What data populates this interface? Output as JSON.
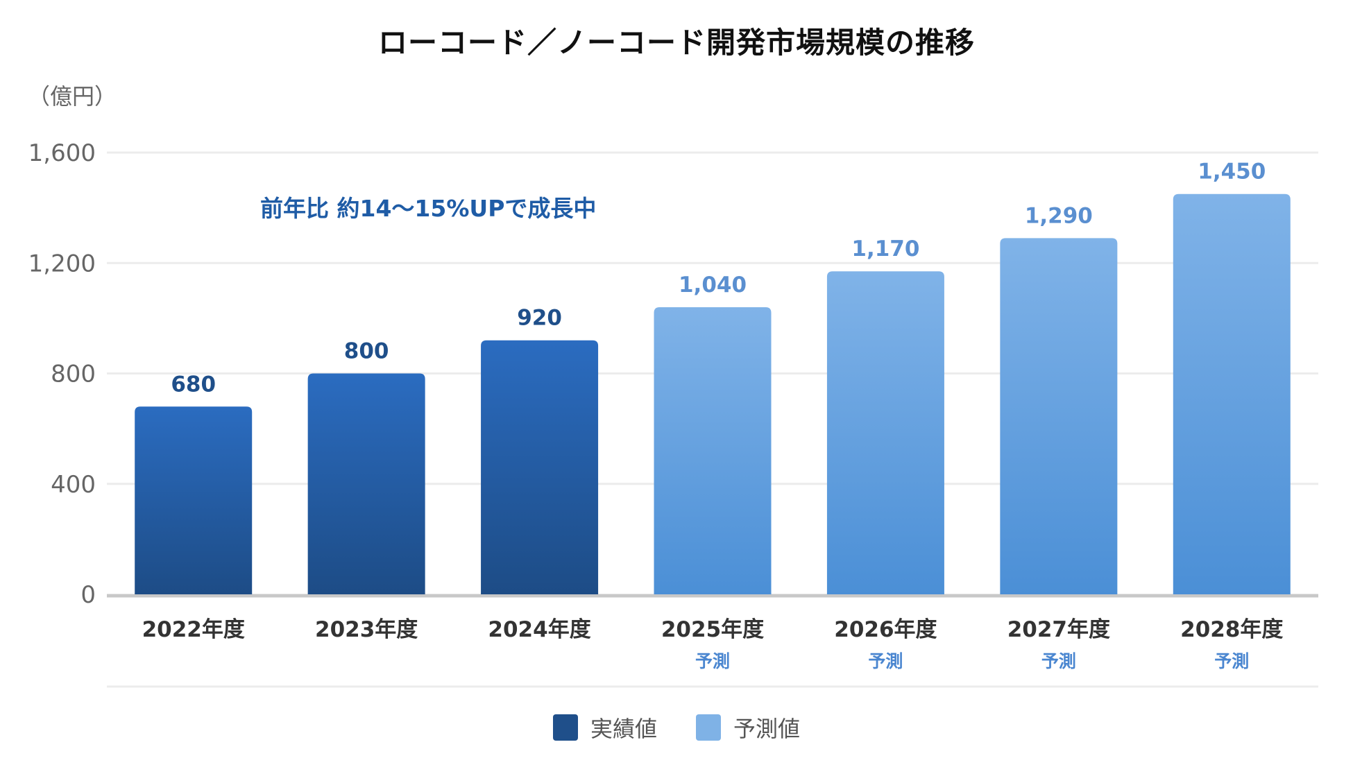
{
  "chart_data": {
    "type": "bar",
    "title": "ローコード／ノーコード開発市場規模の推移",
    "ylabel": "（億円）",
    "ylim": [
      0,
      1600
    ],
    "yticks": [
      0,
      400,
      800,
      1200,
      1600
    ],
    "ytick_labels": [
      "0",
      "400",
      "800",
      "1,200",
      "1,600"
    ],
    "grid": true,
    "categories": [
      "2022年度",
      "2023年度",
      "2024年度",
      "2025年度",
      "2026年度",
      "2027年度",
      "2028年度"
    ],
    "sublabels": [
      "",
      "",
      "",
      "予測",
      "予測",
      "予測",
      "予測"
    ],
    "values": [
      680,
      800,
      920,
      1040,
      1170,
      1290,
      1450
    ],
    "data_labels": [
      "680",
      "800",
      "920",
      "1,040",
      "1,170",
      "1,290",
      "1,450"
    ],
    "kinds": [
      "actual",
      "actual",
      "actual",
      "forecast",
      "forecast",
      "forecast",
      "forecast"
    ],
    "annotation": "前年比 約14〜15%UPで成長中",
    "legend": [
      {
        "key": "actual",
        "label": "実績値",
        "color": "#1f4f8a"
      },
      {
        "key": "forecast",
        "label": "予測値",
        "color": "#7fb2e6"
      }
    ],
    "legend_position": "bottom",
    "colors": {
      "actual_top": "#2b6cc0",
      "actual_bottom": "#1d4c86",
      "forecast_top": "#80b3e8",
      "forecast_bottom": "#4b8fd6",
      "actual_label": "#1f4f8a",
      "forecast_label": "#5a8fd0",
      "annotation": "#1f5ca6",
      "sublabel": "#4a86d0"
    }
  }
}
